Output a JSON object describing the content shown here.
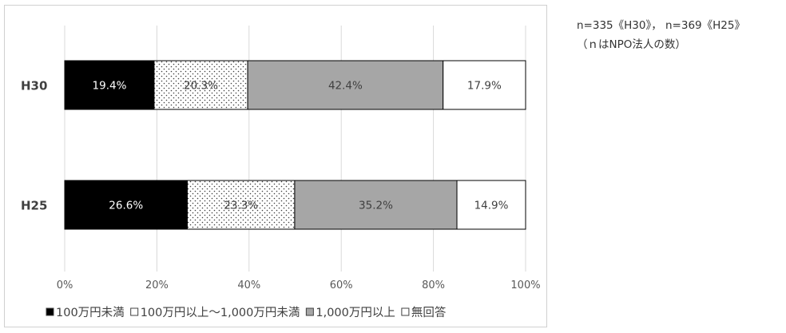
{
  "notes": {
    "line1": "n=335《H30》， n=369《H25》",
    "line2": "（ｎはNPO法人の数）"
  },
  "chart_data": {
    "type": "bar",
    "orientation": "horizontal",
    "stacked": "percent",
    "title": "",
    "xlabel": "",
    "ylabel": "",
    "categories": [
      "H30",
      "H25"
    ],
    "xlim": [
      0,
      100
    ],
    "x_ticks": [
      "0%",
      "20%",
      "40%",
      "60%",
      "80%",
      "100%"
    ],
    "grid": true,
    "legend_position": "bottom",
    "series": [
      {
        "name": "100万円未満",
        "values": [
          19.4,
          26.6
        ],
        "labels": [
          "19.4%",
          "26.6%"
        ],
        "fill": "#000000",
        "pattern": "solid",
        "label_color": "#ffffff"
      },
      {
        "name": "100万円以上～1,000万円未満",
        "values": [
          20.3,
          23.3
        ],
        "labels": [
          "20.3%",
          "23.3%"
        ],
        "fill": "#ffffff",
        "pattern": "dots",
        "label_color": "#404040"
      },
      {
        "name": "1,000万円以上",
        "values": [
          42.4,
          35.2
        ],
        "labels": [
          "42.4%",
          "35.2%"
        ],
        "fill": "#a6a6a6",
        "pattern": "solid",
        "label_color": "#404040"
      },
      {
        "name": "無回答",
        "values": [
          17.9,
          14.9
        ],
        "labels": [
          "17.9%",
          "14.9%"
        ],
        "fill": "#ffffff",
        "pattern": "solid",
        "label_color": "#404040"
      }
    ]
  }
}
